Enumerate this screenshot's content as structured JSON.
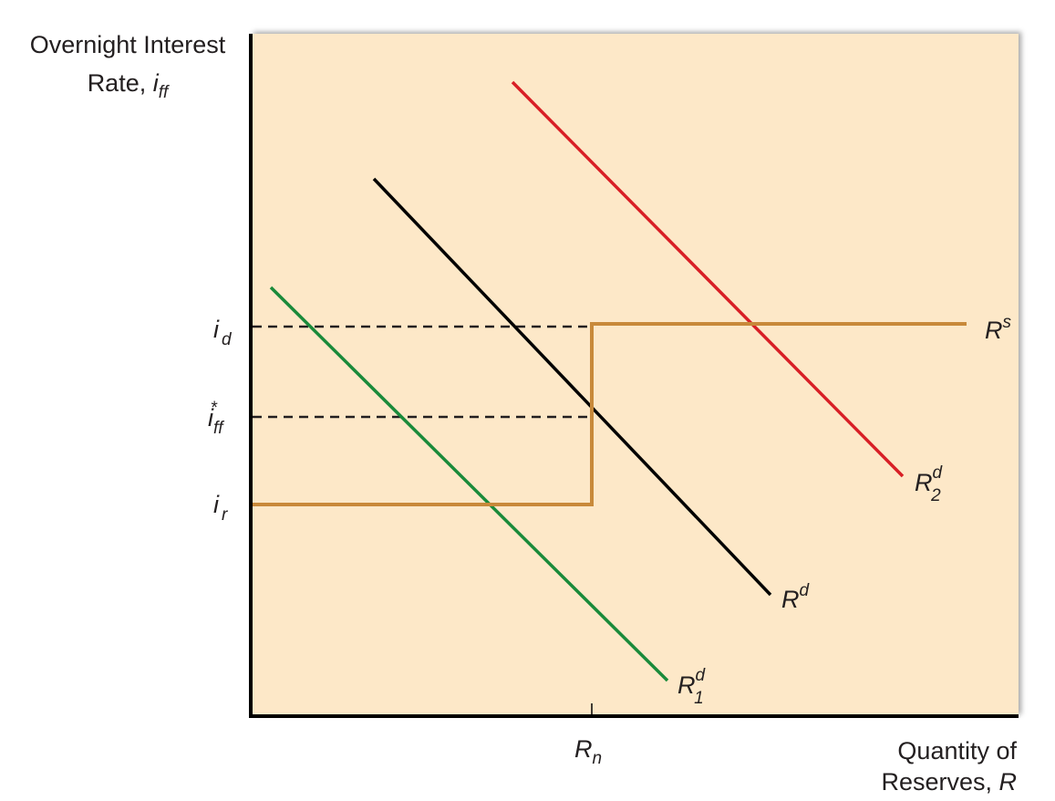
{
  "axes": {
    "y_label": {
      "line1": "Overnight Interest",
      "line2": "Rate, ",
      "symbol": "i",
      "sub": "ff"
    },
    "x_label": {
      "line1": "Quantity of",
      "line2": "Reserves, ",
      "symbol": "R"
    }
  },
  "y_markers": [
    {
      "symbol": "i",
      "sub": "d"
    },
    {
      "symbol": "i",
      "sub": "ff",
      "sup": "*"
    },
    {
      "symbol": "i",
      "sub": "r"
    }
  ],
  "x_markers": [
    {
      "symbol": "R",
      "sub": "n"
    }
  ],
  "curves": [
    {
      "symbol": "R",
      "sup": "s"
    },
    {
      "symbol": "R",
      "sup": "d",
      "sub": "2"
    },
    {
      "symbol": "R",
      "sup": "d"
    },
    {
      "symbol": "R",
      "sup": "d",
      "sub": "1"
    }
  ]
}
